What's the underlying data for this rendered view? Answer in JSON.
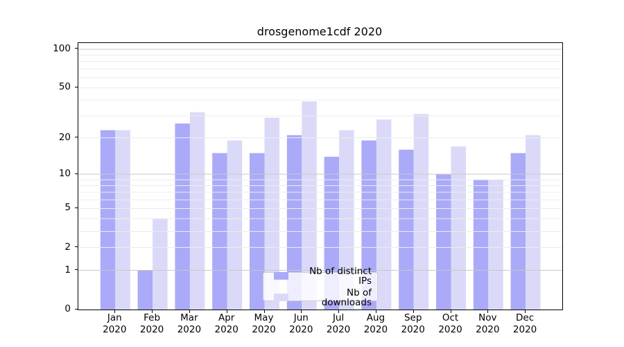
{
  "figure": {
    "colors": {
      "distinct_ips": "#aaaaf8",
      "downloads": "#dadaf8",
      "grid_minor": "#ececec",
      "grid_major": "#c8c8c8",
      "spine": "#000000",
      "legend_border": "#cccccc"
    }
  },
  "chart_data": {
    "type": "bar",
    "title": "drosgenome1cdf 2020",
    "categories": [
      "Jan",
      "Feb",
      "Mar",
      "Apr",
      "May",
      "Jun",
      "Jul",
      "Aug",
      "Sep",
      "Oct",
      "Nov",
      "Dec"
    ],
    "category_year": "2020",
    "series": [
      {
        "name": "Nb of distinct IPs",
        "color": "#aaaaf8",
        "values": [
          23,
          1,
          26,
          15,
          15,
          21,
          14,
          19,
          16,
          10,
          9,
          15
        ]
      },
      {
        "name": "Nb of downloads",
        "color": "#dadaf8",
        "values": [
          23,
          4,
          32,
          19,
          29,
          39,
          23,
          28,
          31,
          17,
          9,
          21
        ]
      }
    ],
    "yscale": "log1p",
    "ylim": [
      0,
      111
    ],
    "y_tick_labels": [
      "100",
      "50",
      "20",
      "10",
      "5",
      "2",
      "1",
      "0"
    ],
    "y_minor_gridlines": [
      2,
      3,
      4,
      5,
      6,
      7,
      8,
      9,
      20,
      30,
      40,
      50,
      60,
      70,
      80,
      90
    ],
    "y_major_gridlines": [
      1,
      10,
      100
    ],
    "grid": true,
    "legend_position": "lower center"
  }
}
